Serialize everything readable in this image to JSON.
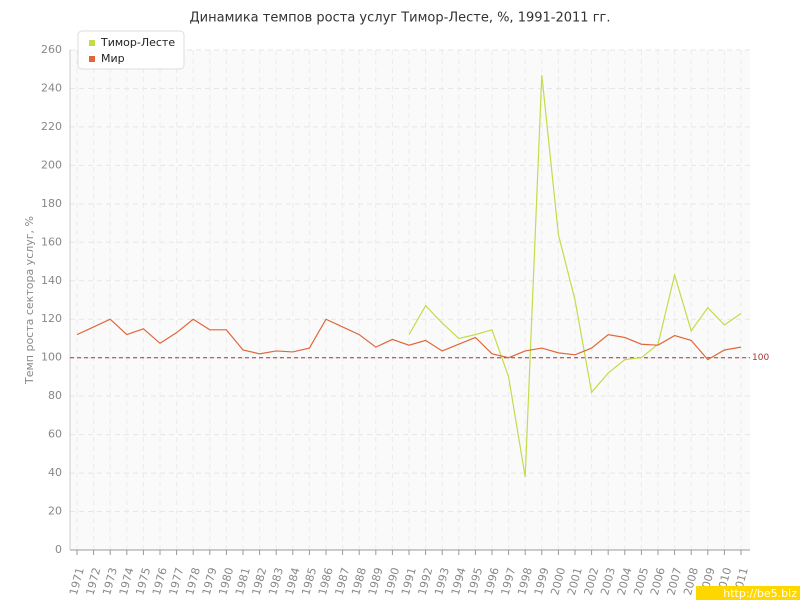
{
  "chart_data": {
    "type": "line",
    "title": "Динамика темпов роста услуг Тимор-Лесте, %, 1991-2011 гг.",
    "y_label": "Темп роста сектора услуг, %",
    "categories": [
      "1971",
      "1972",
      "1973",
      "1974",
      "1975",
      "1976",
      "1977",
      "1978",
      "1979",
      "1980",
      "1981",
      "1982",
      "1983",
      "1984",
      "1985",
      "1986",
      "1987",
      "1988",
      "1989",
      "1990",
      "1991",
      "1992",
      "1993",
      "1994",
      "1995",
      "1996",
      "1997",
      "1998",
      "1999",
      "2000",
      "2001",
      "2002",
      "2003",
      "2004",
      "2005",
      "2006",
      "2007",
      "2008",
      "2009",
      "2010",
      "2011"
    ],
    "series": [
      {
        "name": "Тимор-Лесте",
        "color": "#c3dc4a",
        "values": [
          null,
          null,
          null,
          null,
          null,
          null,
          null,
          null,
          null,
          null,
          null,
          null,
          null,
          null,
          null,
          null,
          null,
          null,
          null,
          null,
          112,
          127,
          118,
          110,
          112,
          114.5,
          90,
          38,
          247,
          164,
          130,
          82,
          92,
          99,
          100,
          107,
          143,
          114,
          126,
          117,
          123
        ]
      },
      {
        "name": "Мир",
        "color": "#e0673a",
        "values": [
          112,
          116,
          120,
          112,
          115,
          107.5,
          113,
          120,
          114.5,
          114.5,
          104,
          102,
          103.5,
          103,
          105,
          120,
          116,
          112,
          105.5,
          109.5,
          106.5,
          109,
          103.5,
          107,
          110.5,
          102,
          100,
          103.5,
          105,
          102.5,
          101.5,
          105,
          112,
          110.5,
          107,
          106.5,
          111.5,
          109,
          99,
          104,
          105.5
        ]
      }
    ],
    "ylim": [
      0,
      260
    ],
    "yticks": [
      0,
      20,
      40,
      60,
      80,
      100,
      120,
      140,
      160,
      180,
      200,
      220,
      240,
      260
    ],
    "grid": true,
    "reference_line": 100,
    "legend": "top-left",
    "watermark": "http://be5.biz"
  }
}
